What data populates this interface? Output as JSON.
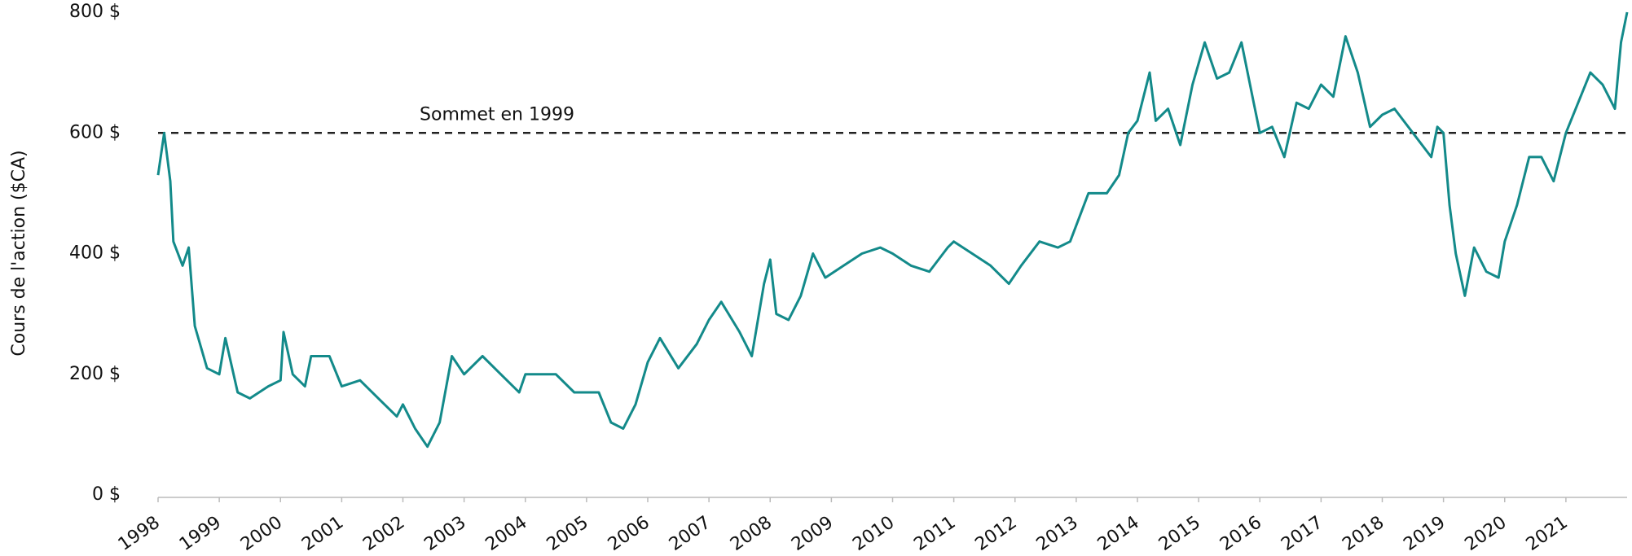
{
  "chart_data": {
    "type": "line",
    "y_label": "Cours de l'action ($CA)",
    "x": [
      1998.0,
      1998.1,
      1998.2,
      1998.25,
      1998.4,
      1998.5,
      1998.6,
      1998.8,
      1999.0,
      1999.1,
      1999.3,
      1999.5,
      1999.8,
      2000.0,
      2000.05,
      2000.2,
      2000.4,
      2000.5,
      2000.8,
      2001.0,
      2001.3,
      2001.6,
      2001.9,
      2002.0,
      2002.2,
      2002.4,
      2002.6,
      2002.8,
      2003.0,
      2003.3,
      2003.6,
      2003.9,
      2004.0,
      2004.5,
      2004.8,
      2005.2,
      2005.4,
      2005.6,
      2005.8,
      2006.0,
      2006.2,
      2006.5,
      2006.8,
      2007.0,
      2007.2,
      2007.5,
      2007.7,
      2007.9,
      2008.0,
      2008.1,
      2008.3,
      2008.5,
      2008.7,
      2008.9,
      2009.2,
      2009.5,
      2009.8,
      2010.0,
      2010.3,
      2010.6,
      2010.9,
      2011.0,
      2011.3,
      2011.6,
      2011.9,
      2012.1,
      2012.4,
      2012.7,
      2012.9,
      2013.2,
      2013.5,
      2013.7,
      2013.85,
      2014.0,
      2014.2,
      2014.3,
      2014.5,
      2014.7,
      2014.9,
      2015.1,
      2015.3,
      2015.5,
      2015.7,
      2015.9,
      2016.0,
      2016.2,
      2016.4,
      2016.6,
      2016.8,
      2017.0,
      2017.2,
      2017.4,
      2017.6,
      2017.8,
      2018.0,
      2018.2,
      2018.5,
      2018.8,
      2018.9,
      2019.0,
      2019.1,
      2019.2,
      2019.35,
      2019.5,
      2019.7,
      2019.9,
      2020.0,
      2020.2,
      2020.4,
      2020.6,
      2020.8,
      2021.0,
      2021.2,
      2021.4,
      2021.6,
      2021.8,
      2021.9,
      2022.0
    ],
    "series": [
      {
        "color": "#138a8a",
        "values": [
          530,
          600,
          520,
          420,
          380,
          410,
          280,
          210,
          200,
          260,
          170,
          160,
          180,
          190,
          270,
          200,
          180,
          230,
          230,
          180,
          190,
          160,
          130,
          150,
          110,
          80,
          120,
          230,
          200,
          230,
          200,
          170,
          200,
          200,
          170,
          170,
          120,
          110,
          150,
          220,
          260,
          210,
          250,
          290,
          320,
          270,
          230,
          350,
          390,
          300,
          290,
          330,
          400,
          360,
          380,
          400,
          410,
          400,
          380,
          370,
          410,
          420,
          400,
          380,
          350,
          380,
          420,
          410,
          420,
          500,
          500,
          530,
          600,
          620,
          700,
          620,
          640,
          580,
          680,
          750,
          690,
          700,
          750,
          650,
          600,
          610,
          560,
          650,
          640,
          680,
          660,
          760,
          700,
          610,
          630,
          640,
          600,
          560,
          610,
          600,
          480,
          400,
          330,
          410,
          370,
          360,
          420,
          480,
          560,
          560,
          520,
          600,
          650,
          700,
          680,
          640,
          750,
          800
        ]
      }
    ],
    "reference_line": {
      "value": 600,
      "label": "Sommet en 1999"
    },
    "xlim": [
      1998,
      2022
    ],
    "xticks": [
      1998,
      1999,
      2000,
      2001,
      2002,
      2003,
      2004,
      2005,
      2006,
      2007,
      2008,
      2009,
      2010,
      2011,
      2012,
      2013,
      2014,
      2015,
      2016,
      2017,
      2018,
      2019,
      2020,
      2021
    ],
    "ylim": [
      0,
      800
    ],
    "yticks": [
      {
        "value": 0,
        "label": "0 $"
      },
      {
        "value": 200,
        "label": "200 $"
      },
      {
        "value": 400,
        "label": "400 $"
      },
      {
        "value": 600,
        "label": "600 $"
      },
      {
        "value": 800,
        "label": "800 $"
      }
    ],
    "grid": false
  }
}
